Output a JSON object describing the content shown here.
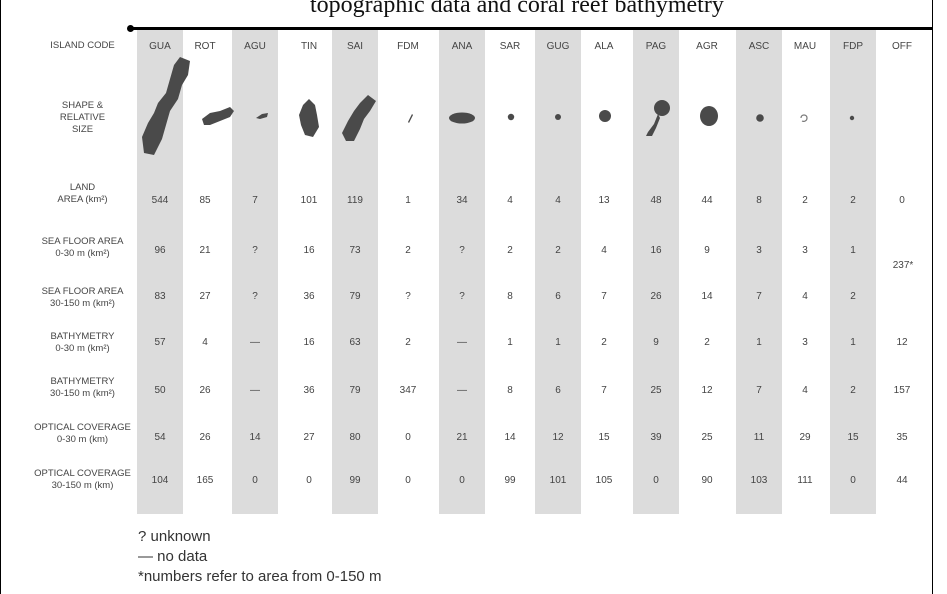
{
  "caption": "topographic data and coral reef bathymetry",
  "row_labels": {
    "island_code": "ISLAND CODE",
    "shape": [
      "SHAPE &",
      "RELATIVE",
      "SIZE"
    ],
    "land": [
      "LAND",
      "AREA (km²)"
    ],
    "sea30": [
      "SEA FLOOR AREA",
      "0-30 m (km²)"
    ],
    "sea150": [
      "SEA FLOOR AREA",
      "30-150 m (km²)"
    ],
    "bath30": [
      "BATHYMETRY",
      "0-30 m (km²)"
    ],
    "bath150": [
      "BATHYMETRY",
      "30-150 m (km²)"
    ],
    "opt30": [
      "OPTICAL COVERAGE",
      "0-30 m (km)"
    ],
    "opt150": [
      "OPTICAL COVERAGE",
      "30-150 m (km)"
    ]
  },
  "islands": [
    "GUA",
    "ROT",
    "AGU",
    "TIN",
    "SAI",
    "FDM",
    "ANA",
    "SAR",
    "GUG",
    "ALA",
    "PAG",
    "AGR",
    "ASC",
    "MAU",
    "FDP",
    "OFF"
  ],
  "shaded": [
    true,
    false,
    true,
    false,
    true,
    false,
    true,
    false,
    true,
    false,
    true,
    false,
    true,
    false,
    true,
    false
  ],
  "rows": {
    "land": [
      "544",
      "85",
      "7",
      "101",
      "119",
      "1",
      "34",
      "4",
      "4",
      "13",
      "48",
      "44",
      "8",
      "2",
      "2",
      "0"
    ],
    "sea30": [
      "96",
      "21",
      "?",
      "16",
      "73",
      "2",
      "?",
      "2",
      "2",
      "4",
      "16",
      "9",
      "3",
      "3",
      "1",
      ""
    ],
    "sea150": [
      "83",
      "27",
      "?",
      "36",
      "79",
      "?",
      "?",
      "8",
      "6",
      "7",
      "26",
      "14",
      "7",
      "4",
      "2",
      ""
    ],
    "bath30": [
      "57",
      "4",
      "—",
      "16",
      "63",
      "2",
      "—",
      "1",
      "1",
      "2",
      "9",
      "2",
      "1",
      "3",
      "1",
      "12"
    ],
    "bath150": [
      "50",
      "26",
      "—",
      "36",
      "79",
      "347",
      "—",
      "8",
      "6",
      "7",
      "25",
      "12",
      "7",
      "4",
      "2",
      "157"
    ],
    "opt30": [
      "54",
      "26",
      "14",
      "27",
      "80",
      "0",
      "21",
      "14",
      "12",
      "15",
      "39",
      "25",
      "11",
      "29",
      "15",
      "35"
    ],
    "opt150": [
      "104",
      "165",
      "0",
      "0",
      "99",
      "0",
      "0",
      "99",
      "101",
      "105",
      "0",
      "90",
      "103",
      "111",
      "0",
      "44"
    ]
  },
  "off_merged": "237*",
  "legend": [
    "? unknown",
    "— no data",
    "*numbers refer to area from 0-150 m"
  ],
  "colors": {
    "shade": "#dcdcdc",
    "island": "#4a4a4a"
  }
}
